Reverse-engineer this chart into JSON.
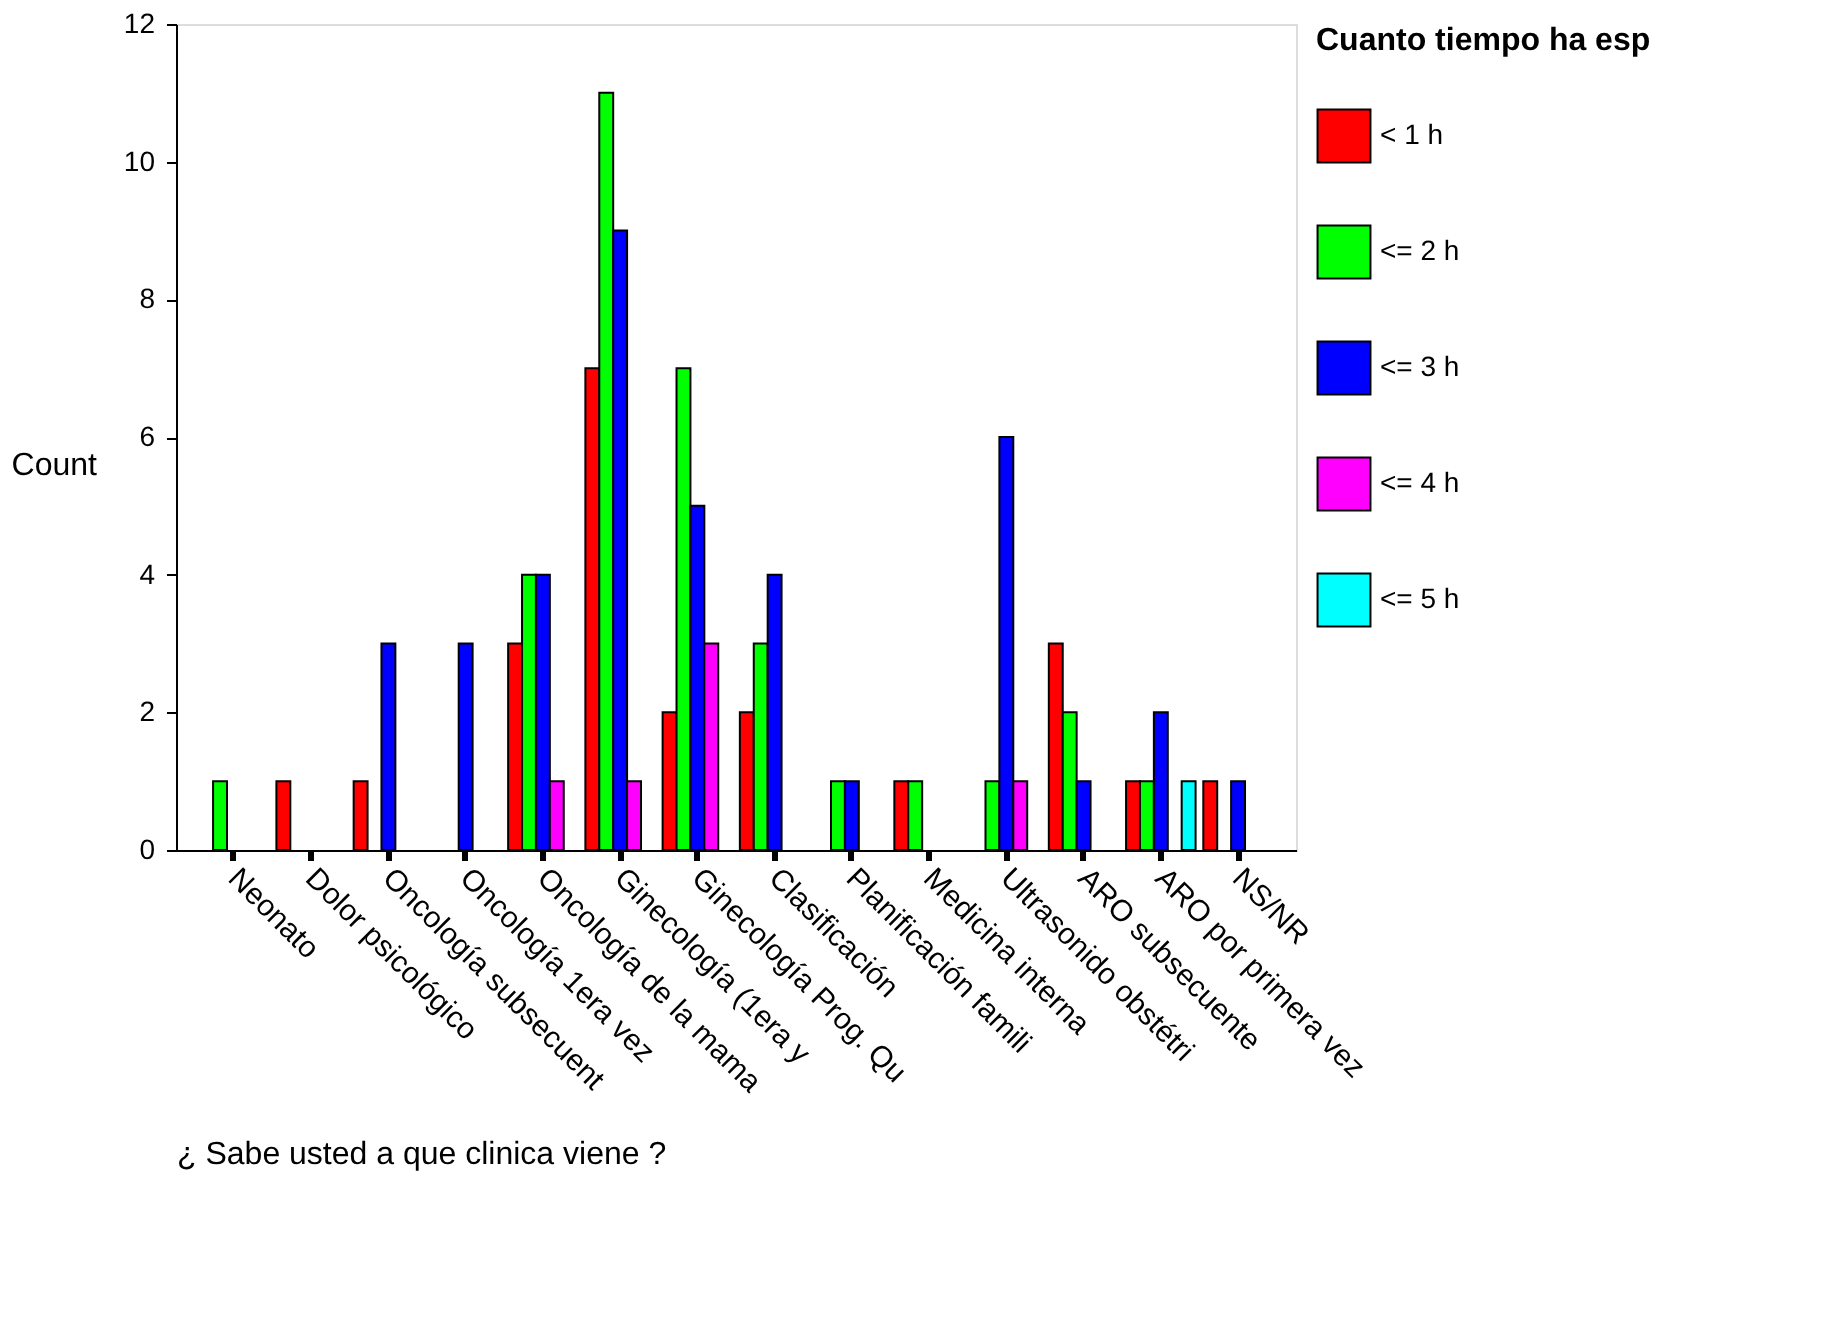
{
  "chart_data": {
    "type": "bar",
    "xlabel": "¿ Sabe usted a que clinica viene ?",
    "ylabel": "Count",
    "legend_title": "Cuanto tiempo ha esp",
    "categories": [
      "Neonato",
      "Dolor psicológico",
      "Oncología subsecuent",
      "Oncología 1era vez",
      "Oncología de la mama",
      "Ginecología (1era y",
      "Ginecología Prog. Qu",
      "Clasificación",
      "Planificación famili",
      "Medicina interna",
      "Ultrasonido obstétri",
      "ARO subsecuente",
      "ARO por primera vez",
      "NS/NR"
    ],
    "series": [
      {
        "name": "< 1 h",
        "color": "#ff0000",
        "values": [
          null,
          1,
          1,
          null,
          3,
          7,
          2,
          2,
          null,
          1,
          null,
          3,
          1,
          1
        ]
      },
      {
        "name": "<= 2 h",
        "color": "#00ff00",
        "values": [
          1,
          null,
          null,
          null,
          4,
          11,
          7,
          3,
          1,
          1,
          1,
          2,
          1,
          null
        ]
      },
      {
        "name": "<= 3 h",
        "color": "#0000ff",
        "values": [
          null,
          null,
          3,
          3,
          4,
          9,
          5,
          4,
          1,
          null,
          6,
          1,
          2,
          1
        ]
      },
      {
        "name": "<= 4 h",
        "color": "#ff00ff",
        "values": [
          null,
          null,
          null,
          null,
          1,
          1,
          3,
          null,
          null,
          null,
          1,
          null,
          null,
          null
        ]
      },
      {
        "name": "<= 5 h",
        "color": "#00ffff",
        "values": [
          null,
          null,
          null,
          null,
          null,
          null,
          null,
          null,
          null,
          null,
          null,
          null,
          1,
          null
        ]
      }
    ],
    "ylim": [
      0,
      12
    ],
    "yticks": [
      0,
      2,
      4,
      6,
      8,
      10,
      12
    ],
    "grid": false,
    "legend": "right"
  }
}
